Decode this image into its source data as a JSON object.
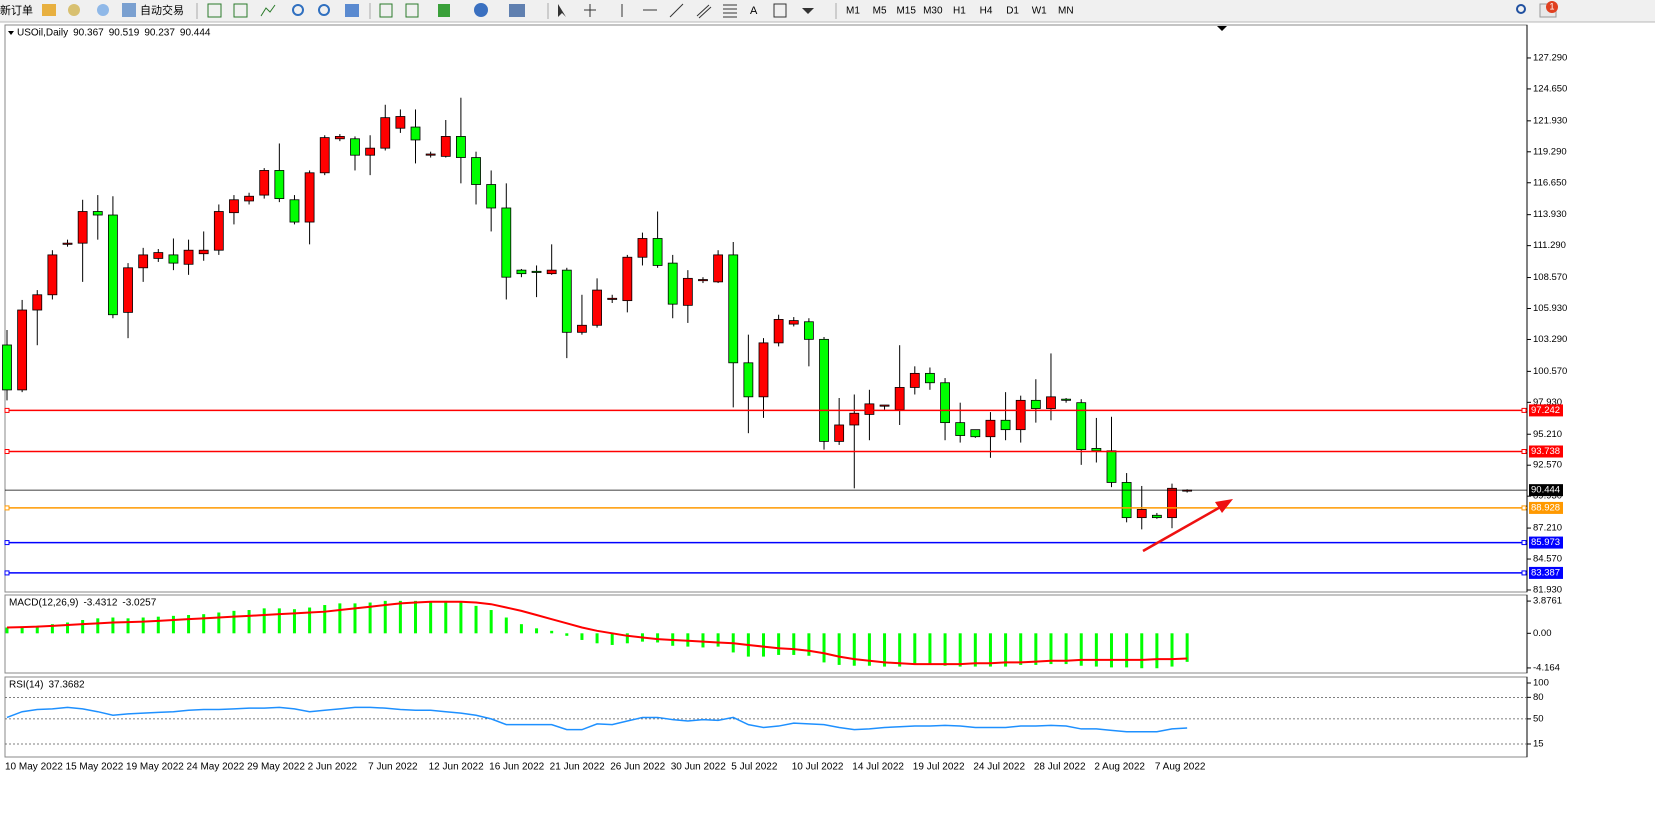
{
  "toolbar": {
    "new_order": "新订单",
    "auto_trading": "自动交易",
    "text_tool": "A",
    "timeframes": [
      "M1",
      "M5",
      "M15",
      "M30",
      "H1",
      "H4",
      "D1",
      "W1",
      "MN"
    ],
    "notification_count": 1
  },
  "chart_data": [
    {
      "type": "candlestick",
      "title": "USOil,Daily",
      "categories": [
        "10 May 2022",
        null,
        null,
        null,
        "15 May 2022",
        null,
        null,
        null,
        "19 May 2022",
        null,
        null,
        null,
        "24 May 2022",
        null,
        null,
        null,
        "29 May 2022",
        null,
        null,
        null,
        "2 Jun 2022",
        null,
        null,
        null,
        "7 Jun 2022",
        null,
        null,
        null,
        "12 Jun 2022",
        null,
        null,
        null,
        "16 Jun 2022",
        null,
        null,
        null,
        "21 Jun 2022",
        null,
        null,
        null,
        "26 Jun 2022",
        null,
        null,
        null,
        "30 Jun 2022",
        null,
        null,
        null,
        "5 Jul 2022",
        null,
        null,
        null,
        "10 Jul 2022",
        null,
        null,
        null,
        "14 Jul 2022",
        null,
        null,
        null,
        "19 Jul 2022",
        null,
        null,
        null,
        "24 Jul 2022",
        null,
        null,
        null,
        "28 Jul 2022",
        null,
        null,
        null,
        "2 Aug 2022",
        null,
        null,
        null,
        "7 Aug 2022",
        null,
        null
      ],
      "open": [
        102.82,
        98.99,
        105.8,
        107.1,
        111.4,
        111.5,
        114.2,
        113.9,
        105.6,
        109.4,
        110.2,
        110.5,
        109.7,
        110.6,
        110.9,
        114.1,
        115.1,
        115.6,
        117.7,
        115.2,
        113.3,
        117.5,
        120.4,
        120.4,
        119.0,
        119.6,
        121.3,
        121.4,
        119.0,
        118.9,
        120.6,
        118.8,
        116.5,
        114.5,
        109.2,
        109.1,
        108.9,
        109.2,
        103.9,
        104.5,
        106.7,
        106.6,
        110.3,
        111.9,
        109.8,
        106.2,
        108.3,
        108.2,
        110.5,
        101.3,
        98.4,
        103.0,
        104.6,
        104.8,
        103.3,
        94.6,
        96.0,
        96.9,
        97.6,
        97.3,
        99.2,
        100.4,
        99.6,
        96.2,
        95.6,
        95.0,
        96.4,
        95.6,
        98.1,
        97.4,
        98.2,
        97.9,
        94.0,
        93.8,
        91.1,
        88.1,
        88.3,
        88.1,
        90.367
      ],
      "high": [
        104.1,
        106.66,
        107.5,
        110.9,
        111.8,
        115.2,
        115.6,
        115.5,
        109.8,
        111.1,
        111.0,
        111.9,
        111.8,
        112.5,
        114.8,
        115.6,
        115.8,
        117.9,
        120.0,
        115.6,
        117.7,
        120.7,
        120.8,
        120.6,
        120.7,
        123.3,
        122.9,
        122.9,
        119.3,
        122.0,
        123.9,
        119.3,
        117.7,
        116.6,
        109.3,
        109.6,
        111.4,
        109.4,
        107.1,
        108.5,
        107.1,
        110.5,
        112.4,
        114.2,
        110.5,
        109.2,
        108.6,
        110.9,
        111.6,
        103.7,
        103.4,
        105.4,
        105.2,
        105.1,
        103.5,
        98.3,
        98.6,
        99.0,
        97.7,
        102.8,
        101.0,
        100.9,
        100.0,
        97.9,
        95.6,
        97.1,
        98.8,
        98.5,
        99.9,
        102.1,
        98.3,
        98.2,
        96.6,
        96.7,
        91.9,
        90.8,
        88.5,
        91.0,
        90.519
      ],
      "low": [
        98.1,
        98.8,
        102.8,
        106.7,
        111.2,
        108.2,
        111.8,
        105.1,
        103.4,
        108.2,
        109.9,
        109.2,
        108.8,
        110.0,
        110.5,
        113.1,
        114.8,
        115.3,
        115.0,
        113.1,
        111.4,
        117.3,
        120.2,
        117.7,
        117.3,
        119.4,
        120.9,
        118.3,
        118.8,
        118.8,
        116.6,
        114.8,
        112.5,
        106.7,
        108.6,
        106.9,
        108.8,
        101.7,
        103.7,
        104.3,
        106.4,
        105.6,
        109.6,
        109.4,
        105.1,
        104.7,
        108.1,
        108.1,
        97.5,
        95.3,
        96.6,
        102.7,
        104.4,
        101.0,
        93.9,
        94.3,
        90.6,
        94.7,
        97.3,
        96.0,
        98.6,
        99.0,
        94.7,
        94.5,
        94.9,
        93.2,
        94.7,
        94.5,
        96.2,
        96.4,
        97.9,
        92.6,
        92.8,
        90.7,
        87.7,
        87.1,
        88.0,
        87.2,
        90.237
      ],
      "close": [
        98.99,
        105.8,
        107.1,
        110.5,
        111.5,
        114.2,
        113.9,
        105.4,
        109.4,
        110.5,
        110.7,
        109.8,
        110.9,
        110.9,
        114.2,
        115.2,
        115.5,
        117.7,
        115.3,
        113.3,
        117.5,
        120.5,
        120.6,
        119.0,
        119.6,
        122.2,
        122.3,
        120.3,
        119.1,
        120.6,
        118.8,
        116.5,
        114.5,
        108.6,
        108.9,
        109.0,
        109.2,
        103.9,
        104.5,
        107.5,
        106.8,
        110.3,
        111.9,
        109.6,
        106.3,
        108.5,
        108.4,
        110.5,
        101.3,
        98.4,
        103.0,
        105.0,
        104.9,
        103.3,
        94.6,
        96.0,
        97.0,
        97.8,
        97.7,
        99.2,
        100.4,
        99.6,
        96.2,
        95.1,
        95.0,
        96.4,
        95.6,
        98.1,
        97.4,
        98.4,
        98.1,
        93.9,
        93.8,
        91.1,
        88.1,
        88.8,
        88.1,
        90.6,
        90.444
      ],
      "up_color": "#ff0000",
      "down_color": "#00ff00",
      "levels": [
        {
          "value": 97.242,
          "color": "#ff0000"
        },
        {
          "value": 93.738,
          "color": "#ff0000"
        },
        {
          "value": 88.928,
          "color": "#ff9900"
        },
        {
          "value": 85.973,
          "color": "#0000ff"
        },
        {
          "value": 83.387,
          "color": "#0000ff"
        }
      ],
      "ylim": [
        81.76,
        130.1
      ],
      "yticks": [
        {
          "value": 127.29,
          "label": "127.290"
        },
        {
          "value": 124.65,
          "label": "124.650"
        },
        {
          "value": 121.93,
          "label": "121.930"
        },
        {
          "value": 119.29,
          "label": "119.290"
        },
        {
          "value": 116.65,
          "label": "116.650"
        },
        {
          "value": 113.93,
          "label": "113.930"
        },
        {
          "value": 111.29,
          "label": "111.290"
        },
        {
          "value": 108.57,
          "label": "108.570"
        },
        {
          "value": 105.93,
          "label": "105.930"
        },
        {
          "value": 103.29,
          "label": "103.290"
        },
        {
          "value": 100.57,
          "label": "100.570"
        },
        {
          "value": 97.93,
          "label": "97.930"
        },
        {
          "value": 95.21,
          "label": "95.210"
        },
        {
          "value": 92.57,
          "label": "92.570"
        },
        {
          "value": 89.93,
          "label": "89.930"
        },
        {
          "value": 87.21,
          "label": "87.210"
        },
        {
          "value": 84.57,
          "label": "84.570"
        },
        {
          "value": 81.93,
          "label": "81.930"
        }
      ]
    },
    {
      "type": "macd",
      "title": "MACD(12,26,9)",
      "histogram": [
        0.7,
        0.8,
        0.9,
        1.1,
        1.3,
        1.6,
        1.8,
        1.9,
        1.8,
        1.9,
        2.0,
        2.1,
        2.2,
        2.3,
        2.5,
        2.7,
        2.8,
        3.0,
        3.0,
        2.9,
        3.1,
        3.4,
        3.6,
        3.6,
        3.7,
        3.9,
        3.9,
        3.9,
        3.8,
        3.9,
        3.8,
        3.3,
        2.8,
        1.9,
        1.1,
        0.6,
        0.3,
        -0.3,
        -0.8,
        -1.2,
        -1.4,
        -1.2,
        -1.0,
        -1.1,
        -1.5,
        -1.6,
        -1.7,
        -1.6,
        -2.3,
        -2.8,
        -2.8,
        -2.6,
        -2.6,
        -2.7,
        -3.5,
        -3.8,
        -3.9,
        -3.9,
        -4.0,
        -4.0,
        -3.8,
        -3.7,
        -3.9,
        -4.0,
        -4.0,
        -4.0,
        -4.0,
        -3.8,
        -3.8,
        -3.7,
        -3.7,
        -3.9,
        -4.0,
        -4.1,
        -4.1,
        -4.2,
        -4.2,
        -4.0,
        -3.4312
      ],
      "signal": [
        0.7,
        0.75,
        0.8,
        0.9,
        1.0,
        1.1,
        1.2,
        1.3,
        1.35,
        1.4,
        1.5,
        1.6,
        1.7,
        1.8,
        1.9,
        2.0,
        2.1,
        2.2,
        2.3,
        2.4,
        2.5,
        2.6,
        2.8,
        3.0,
        3.2,
        3.4,
        3.6,
        3.7,
        3.8,
        3.8,
        3.8,
        3.7,
        3.5,
        3.1,
        2.7,
        2.2,
        1.7,
        1.2,
        0.7,
        0.3,
        0.0,
        -0.3,
        -0.5,
        -0.7,
        -0.8,
        -0.9,
        -1.0,
        -1.1,
        -1.2,
        -1.4,
        -1.6,
        -1.8,
        -1.9,
        -2.1,
        -2.4,
        -2.8,
        -3.1,
        -3.3,
        -3.5,
        -3.6,
        -3.7,
        -3.7,
        -3.7,
        -3.7,
        -3.6,
        -3.6,
        -3.5,
        -3.5,
        -3.4,
        -3.3,
        -3.3,
        -3.2,
        -3.2,
        -3.2,
        -3.2,
        -3.2,
        -3.1,
        -3.1,
        -3.0257
      ],
      "histogram_color": "#00ff00",
      "signal_color": "#ff0000",
      "ylim": [
        -4.773,
        4.607
      ],
      "yticks": [
        3.8761,
        {
          "value": 0,
          "label": "0.00"
        },
        -4.164
      ]
    },
    {
      "type": "line",
      "title": "RSI(14)",
      "values": [
        52,
        60,
        63,
        64,
        66,
        64,
        60,
        55,
        57,
        58,
        59,
        60,
        62,
        63,
        63,
        64,
        65,
        65,
        66,
        64,
        60,
        62,
        64,
        66,
        66,
        65,
        63,
        62,
        62,
        60,
        58,
        55,
        50,
        42,
        42,
        42,
        42,
        35,
        35,
        43,
        42,
        47,
        52,
        52,
        49,
        47,
        49,
        48,
        52,
        42,
        38,
        40,
        44,
        43,
        42,
        38,
        35,
        36,
        38,
        39,
        40,
        40,
        41,
        40,
        38,
        38,
        38,
        40,
        40,
        41,
        40,
        36,
        36,
        34,
        32,
        32,
        32,
        36,
        37.3682
      ],
      "color": "#1e90ff",
      "levels": [
        80,
        50,
        15
      ],
      "ylim": [
        -3.12,
        108.36
      ],
      "yticks": [
        100,
        80,
        50,
        15
      ]
    }
  ]
}
